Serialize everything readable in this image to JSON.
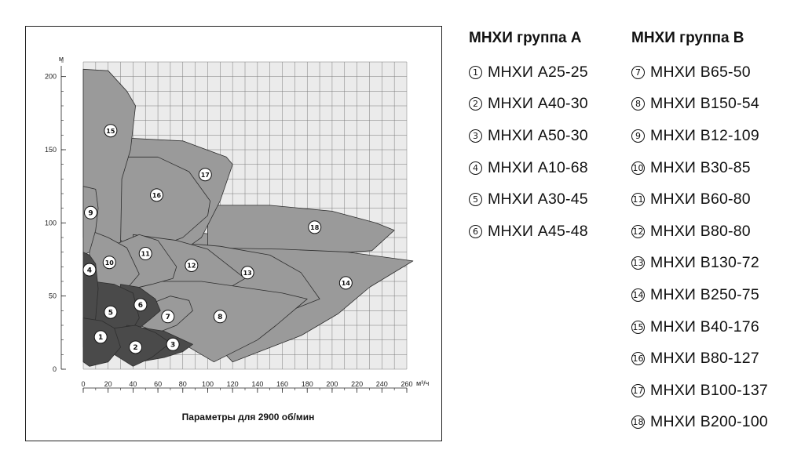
{
  "legend_groups": [
    {
      "title": "МНХИ группа А",
      "items": [
        {
          "num": "1",
          "label": "МНХИ А25-25"
        },
        {
          "num": "2",
          "label": "МНХИ А40-30"
        },
        {
          "num": "3",
          "label": "МНХИ А50-30"
        },
        {
          "num": "4",
          "label": "МНХИ А10-68"
        },
        {
          "num": "5",
          "label": "МНХИ А30-45"
        },
        {
          "num": "6",
          "label": "МНХИ А45-48"
        }
      ]
    },
    {
      "title": "МНХИ группа В",
      "items": [
        {
          "num": "7",
          "label": "МНХИ В65-50"
        },
        {
          "num": "8",
          "label": "МНХИ В150-54"
        },
        {
          "num": "9",
          "label": "МНХИ В12-109"
        },
        {
          "num": "10",
          "label": "МНХИ В30-85"
        },
        {
          "num": "11",
          "label": "МНХИ В60-80"
        },
        {
          "num": "12",
          "label": "МНХИ В80-80"
        },
        {
          "num": "13",
          "label": "МНХИ В130-72"
        },
        {
          "num": "14",
          "label": "МНХИ В250-75"
        },
        {
          "num": "15",
          "label": "МНХИ В40-176"
        },
        {
          "num": "16",
          "label": "МНХИ В80-127"
        },
        {
          "num": "17",
          "label": "МНХИ В100-137"
        },
        {
          "num": "18",
          "label": "МНХИ В200-100"
        }
      ]
    }
  ],
  "chart_data": {
    "type": "area",
    "title": "",
    "caption": "Параметры для 2900 об/мин",
    "xlabel": "м³/ч",
    "ylabel": "м",
    "xlim": [
      0,
      260
    ],
    "ylim": [
      0,
      210
    ],
    "x_ticks": [
      0,
      20,
      40,
      60,
      80,
      100,
      120,
      140,
      160,
      180,
      200,
      220,
      240,
      260
    ],
    "y_ticks": [
      0,
      50,
      100,
      150,
      200
    ],
    "grid": true,
    "colors": {
      "plot_bg": "#ebebeb",
      "grid": "#7a7a7a",
      "group_a": "#4a4a4a",
      "group_b": "#9a9a9a",
      "region_edge": "#2e2e2e",
      "badge_fill": "#ffffff"
    },
    "regions": [
      {
        "id": "14",
        "group": "B",
        "label_at": [
          211,
          59
        ],
        "points": [
          [
            78,
            95
          ],
          [
            195,
            82
          ],
          [
            265,
            74
          ],
          [
            230,
            56
          ],
          [
            205,
            38
          ],
          [
            175,
            23
          ],
          [
            120,
            5
          ],
          [
            92,
            30
          ],
          [
            80,
            70
          ]
        ]
      },
      {
        "id": "18",
        "group": "B",
        "label_at": [
          186,
          97
        ],
        "points": [
          [
            100,
            112
          ],
          [
            150,
            112
          ],
          [
            200,
            108
          ],
          [
            235,
            100
          ],
          [
            250,
            95
          ],
          [
            232,
            81
          ],
          [
            215,
            80
          ],
          [
            160,
            82
          ],
          [
            100,
            83
          ]
        ]
      },
      {
        "id": "13",
        "group": "B",
        "label_at": [
          132,
          66
        ],
        "points": [
          [
            55,
            88
          ],
          [
            110,
            84
          ],
          [
            150,
            78
          ],
          [
            175,
            66
          ],
          [
            190,
            48
          ],
          [
            160,
            38
          ],
          [
            130,
            26
          ],
          [
            110,
            20
          ],
          [
            85,
            28
          ],
          [
            65,
            50
          ]
        ]
      },
      {
        "id": "17",
        "group": "B",
        "label_at": [
          98,
          133
        ],
        "points": [
          [
            35,
            158
          ],
          [
            80,
            156
          ],
          [
            115,
            145
          ],
          [
            120,
            140
          ],
          [
            110,
            115
          ],
          [
            95,
            90
          ],
          [
            70,
            75
          ],
          [
            40,
            85
          ],
          [
            35,
            115
          ]
        ]
      },
      {
        "id": "16",
        "group": "B",
        "label_at": [
          59,
          119
        ],
        "points": [
          [
            30,
            145
          ],
          [
            60,
            145
          ],
          [
            85,
            135
          ],
          [
            102,
            115
          ],
          [
            100,
            105
          ],
          [
            80,
            90
          ],
          [
            55,
            82
          ],
          [
            35,
            82
          ],
          [
            25,
            95
          ]
        ]
      },
      {
        "id": "15",
        "group": "B",
        "label_at": [
          22,
          163
        ],
        "points": [
          [
            0,
            205
          ],
          [
            20,
            204
          ],
          [
            35,
            190
          ],
          [
            42,
            180
          ],
          [
            38,
            150
          ],
          [
            31,
            130
          ],
          [
            30,
            85
          ],
          [
            15,
            80
          ],
          [
            0,
            90
          ]
        ]
      },
      {
        "id": "12",
        "group": "B",
        "label_at": [
          87,
          71
        ],
        "points": [
          [
            40,
            92
          ],
          [
            75,
            88
          ],
          [
            100,
            82
          ],
          [
            118,
            70
          ],
          [
            130,
            62
          ],
          [
            110,
            52
          ],
          [
            85,
            48
          ],
          [
            55,
            55
          ],
          [
            42,
            68
          ]
        ]
      },
      {
        "id": "8",
        "group": "B",
        "label_at": [
          110,
          36
        ],
        "points": [
          [
            40,
            60
          ],
          [
            95,
            60
          ],
          [
            160,
            52
          ],
          [
            180,
            48
          ],
          [
            155,
            30
          ],
          [
            140,
            20
          ],
          [
            105,
            5
          ],
          [
            65,
            25
          ],
          [
            50,
            40
          ]
        ]
      },
      {
        "id": "11",
        "group": "B",
        "label_at": [
          50,
          79
        ],
        "points": [
          [
            25,
            85
          ],
          [
            45,
            92
          ],
          [
            60,
            88
          ],
          [
            75,
            70
          ],
          [
            72,
            62
          ],
          [
            55,
            58
          ],
          [
            40,
            55
          ],
          [
            30,
            63
          ]
        ]
      },
      {
        "id": "10",
        "group": "B",
        "label_at": [
          21,
          73
        ],
        "points": [
          [
            5,
            95
          ],
          [
            20,
            90
          ],
          [
            35,
            83
          ],
          [
            45,
            65
          ],
          [
            35,
            55
          ],
          [
            20,
            45
          ],
          [
            8,
            45
          ],
          [
            5,
            60
          ]
        ]
      },
      {
        "id": "9",
        "group": "B",
        "label_at": [
          6,
          107
        ],
        "points": [
          [
            0,
            125
          ],
          [
            10,
            123
          ],
          [
            12,
            110
          ],
          [
            10,
            95
          ],
          [
            5,
            80
          ],
          [
            0,
            78
          ]
        ]
      },
      {
        "id": "7",
        "group": "B",
        "label_at": [
          68,
          36
        ],
        "points": [
          [
            35,
            48
          ],
          [
            55,
            45
          ],
          [
            70,
            50
          ],
          [
            85,
            47
          ],
          [
            88,
            40
          ],
          [
            75,
            30
          ],
          [
            60,
            25
          ],
          [
            45,
            30
          ]
        ]
      },
      {
        "id": "6",
        "group": "A",
        "label_at": [
          46,
          44
        ],
        "points": [
          [
            30,
            58
          ],
          [
            45,
            56
          ],
          [
            58,
            48
          ],
          [
            62,
            40
          ],
          [
            55,
            35
          ],
          [
            45,
            28
          ],
          [
            35,
            30
          ],
          [
            28,
            40
          ]
        ]
      },
      {
        "id": "5",
        "group": "A",
        "label_at": [
          22,
          39
        ],
        "points": [
          [
            8,
            60
          ],
          [
            25,
            58
          ],
          [
            40,
            52
          ],
          [
            45,
            35
          ],
          [
            38,
            25
          ],
          [
            25,
            15
          ],
          [
            12,
            20
          ],
          [
            8,
            35
          ]
        ]
      },
      {
        "id": "4",
        "group": "A",
        "label_at": [
          5,
          68
        ],
        "points": [
          [
            0,
            80
          ],
          [
            5,
            78
          ],
          [
            10,
            72
          ],
          [
            12,
            55
          ],
          [
            10,
            35
          ],
          [
            5,
            20
          ],
          [
            0,
            15
          ]
        ]
      },
      {
        "id": "3",
        "group": "A",
        "label_at": [
          72,
          17
        ],
        "points": [
          [
            35,
            30
          ],
          [
            65,
            26
          ],
          [
            88,
            17
          ],
          [
            80,
            12
          ],
          [
            65,
            8
          ],
          [
            45,
            5
          ],
          [
            32,
            10
          ]
        ]
      },
      {
        "id": "2",
        "group": "A",
        "label_at": [
          42,
          15
        ],
        "points": [
          [
            25,
            28
          ],
          [
            42,
            30
          ],
          [
            58,
            25
          ],
          [
            70,
            18
          ],
          [
            55,
            8
          ],
          [
            40,
            2
          ],
          [
            25,
            10
          ]
        ]
      },
      {
        "id": "1",
        "group": "A",
        "label_at": [
          14,
          22
        ],
        "points": [
          [
            0,
            35
          ],
          [
            15,
            33
          ],
          [
            25,
            28
          ],
          [
            30,
            15
          ],
          [
            20,
            5
          ],
          [
            5,
            2
          ],
          [
            0,
            5
          ]
        ]
      }
    ]
  }
}
